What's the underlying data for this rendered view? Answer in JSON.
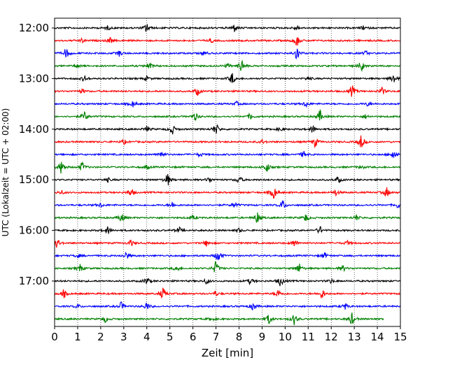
{
  "chart_data": {
    "type": "line",
    "title": "",
    "xlabel": "Zeit  [min]",
    "ylabel": "UTC (Lokalzeit = UTC + 02:00)",
    "xlim": [
      0,
      15
    ],
    "xticks": [
      0,
      1,
      2,
      3,
      4,
      5,
      6,
      7,
      8,
      9,
      10,
      11,
      12,
      13,
      14,
      15
    ],
    "ytick_labels": [
      "12:00",
      "13:00",
      "14:00",
      "15:00",
      "16:00",
      "17:00"
    ],
    "grid": "vertical dotted",
    "trace_interval_minutes": 15,
    "colors": [
      "#000000",
      "#ff0000",
      "#0000ff",
      "#008000"
    ],
    "series": [
      {
        "start": "12:00",
        "color": "#000000",
        "events": [
          [
            4.0,
            5
          ],
          [
            7.8,
            4
          ],
          [
            2.3,
            2
          ],
          [
            10.5,
            2
          ],
          [
            13.4,
            2
          ]
        ]
      },
      {
        "start": "12:15",
        "color": "#ff0000",
        "events": [
          [
            10.5,
            6
          ],
          [
            2.4,
            3
          ],
          [
            1.2,
            2
          ],
          [
            6.8,
            2
          ]
        ]
      },
      {
        "start": "12:30",
        "color": "#0000ff",
        "events": [
          [
            0.5,
            5
          ],
          [
            10.5,
            7
          ],
          [
            2.8,
            3
          ],
          [
            6.5,
            2
          ],
          [
            13.5,
            2
          ]
        ]
      },
      {
        "start": "12:45",
        "color": "#008000",
        "events": [
          [
            8.1,
            7
          ],
          [
            4.1,
            4
          ],
          [
            7.5,
            2
          ],
          [
            13.3,
            5
          ],
          [
            1.0,
            2
          ]
        ]
      },
      {
        "start": "13:00",
        "color": "#000000",
        "events": [
          [
            7.7,
            6
          ],
          [
            1.3,
            3
          ],
          [
            4.0,
            2
          ],
          [
            14.7,
            5
          ],
          [
            11.0,
            2
          ]
        ]
      },
      {
        "start": "13:15",
        "color": "#ff0000",
        "events": [
          [
            6.2,
            4
          ],
          [
            12.9,
            6
          ],
          [
            14.2,
            4
          ],
          [
            1.2,
            2
          ]
        ]
      },
      {
        "start": "13:30",
        "color": "#0000ff",
        "events": [
          [
            3.4,
            3
          ],
          [
            10.9,
            3
          ],
          [
            7.9,
            2
          ],
          [
            13.6,
            2
          ]
        ]
      },
      {
        "start": "13:45",
        "color": "#008000",
        "events": [
          [
            1.3,
            5
          ],
          [
            6.1,
            4
          ],
          [
            11.5,
            6
          ],
          [
            8.5,
            3
          ],
          [
            13.5,
            2
          ]
        ]
      },
      {
        "start": "14:00",
        "color": "#000000",
        "events": [
          [
            5.1,
            5
          ],
          [
            7.0,
            6
          ],
          [
            11.2,
            4
          ],
          [
            4.0,
            3
          ],
          [
            9.8,
            2
          ]
        ]
      },
      {
        "start": "14:15",
        "color": "#ff0000",
        "events": [
          [
            13.3,
            7
          ],
          [
            11.3,
            5
          ],
          [
            3.0,
            2
          ],
          [
            9.0,
            2
          ]
        ]
      },
      {
        "start": "14:30",
        "color": "#0000ff",
        "events": [
          [
            4.6,
            4
          ],
          [
            10.8,
            3
          ],
          [
            14.7,
            6
          ],
          [
            6.3,
            2
          ]
        ]
      },
      {
        "start": "14:45",
        "color": "#008000",
        "events": [
          [
            0.3,
            7
          ],
          [
            1.2,
            5
          ],
          [
            9.2,
            5
          ],
          [
            4.0,
            2
          ],
          [
            13.3,
            2
          ]
        ]
      },
      {
        "start": "15:00",
        "color": "#000000",
        "events": [
          [
            4.9,
            6
          ],
          [
            6.7,
            3
          ],
          [
            8.0,
            4
          ],
          [
            2.3,
            2
          ],
          [
            12.3,
            3
          ]
        ]
      },
      {
        "start": "15:15",
        "color": "#ff0000",
        "events": [
          [
            9.5,
            7
          ],
          [
            3.3,
            4
          ],
          [
            14.4,
            5
          ],
          [
            12.2,
            3
          ],
          [
            0.3,
            2
          ]
        ]
      },
      {
        "start": "15:30",
        "color": "#0000ff",
        "events": [
          [
            9.9,
            5
          ],
          [
            5.1,
            3
          ],
          [
            7.8,
            3
          ],
          [
            14.9,
            3
          ],
          [
            2.0,
            2
          ]
        ]
      },
      {
        "start": "15:45",
        "color": "#008000",
        "events": [
          [
            2.9,
            5
          ],
          [
            8.8,
            6
          ],
          [
            10.9,
            4
          ],
          [
            6.0,
            2
          ],
          [
            13.1,
            3
          ]
        ]
      },
      {
        "start": "16:00",
        "color": "#000000",
        "events": [
          [
            2.3,
            4
          ],
          [
            5.4,
            3
          ],
          [
            11.5,
            4
          ],
          [
            8.0,
            2
          ]
        ]
      },
      {
        "start": "16:15",
        "color": "#ff0000",
        "events": [
          [
            0.1,
            5
          ],
          [
            3.3,
            3
          ],
          [
            6.6,
            3
          ],
          [
            10.4,
            4
          ],
          [
            12.7,
            2
          ]
        ]
      },
      {
        "start": "16:30",
        "color": "#0000ff",
        "events": [
          [
            3.1,
            4
          ],
          [
            7.1,
            7
          ],
          [
            11.7,
            3
          ],
          [
            1.0,
            2
          ]
        ]
      },
      {
        "start": "16:45",
        "color": "#008000",
        "events": [
          [
            1.1,
            4
          ],
          [
            7.0,
            7
          ],
          [
            10.6,
            5
          ],
          [
            5.3,
            3
          ],
          [
            12.5,
            3
          ]
        ]
      },
      {
        "start": "17:00",
        "color": "#000000",
        "events": [
          [
            4.0,
            4
          ],
          [
            6.6,
            3
          ],
          [
            8.5,
            3
          ],
          [
            9.8,
            5
          ],
          [
            12.0,
            2
          ]
        ]
      },
      {
        "start": "17:15",
        "color": "#ff0000",
        "events": [
          [
            0.4,
            4
          ],
          [
            4.7,
            6
          ],
          [
            9.7,
            4
          ],
          [
            11.6,
            5
          ],
          [
            7.0,
            2
          ]
        ]
      },
      {
        "start": "17:30",
        "color": "#0000ff",
        "events": [
          [
            2.9,
            4
          ],
          [
            4.0,
            4
          ],
          [
            8.6,
            4
          ],
          [
            12.6,
            3
          ],
          [
            1.0,
            2
          ]
        ]
      },
      {
        "start": "17:45",
        "color": "#008000",
        "events": [
          [
            2.2,
            3
          ],
          [
            9.3,
            5
          ],
          [
            10.4,
            6
          ],
          [
            12.9,
            6
          ],
          [
            6.8,
            2
          ]
        ]
      }
    ]
  }
}
